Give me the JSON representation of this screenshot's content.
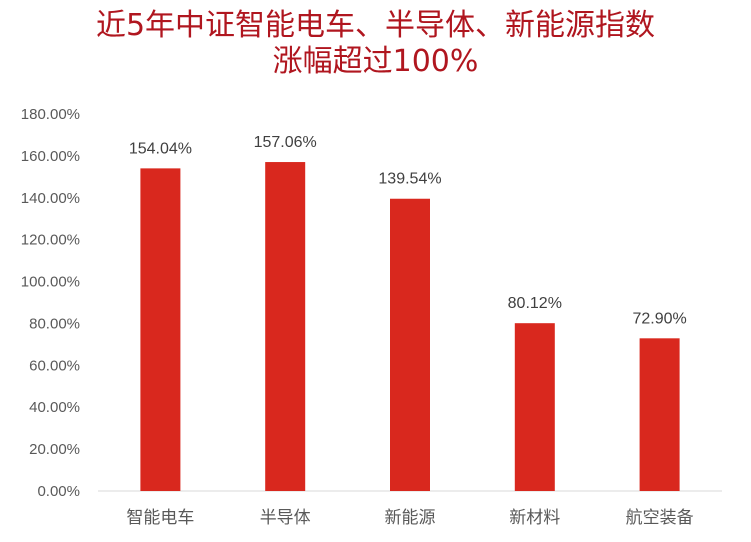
{
  "chart_data": {
    "type": "bar",
    "title": "近5年中证智能电车、半导体、新能源指数\n涨幅超过100%",
    "categories": [
      "智能电车",
      "半导体",
      "新能源",
      "新材料",
      "航空装备"
    ],
    "values": [
      154.04,
      157.06,
      139.54,
      80.12,
      72.9
    ],
    "data_labels": [
      "154.04%",
      "157.06%",
      "139.54%",
      "80.12%",
      "72.90%"
    ],
    "y_ticks": [
      0,
      20,
      40,
      60,
      80,
      100,
      120,
      140,
      160,
      180
    ],
    "y_tick_labels": [
      "0.00%",
      "20.00%",
      "40.00%",
      "60.00%",
      "80.00%",
      "100.00%",
      "120.00%",
      "140.00%",
      "160.00%",
      "180.00%"
    ],
    "ylim": [
      0,
      180
    ],
    "xlabel": "",
    "ylabel": "",
    "grid": false,
    "legend": "none",
    "bar_color": "#d9281e",
    "title_color": "#b0161f"
  }
}
